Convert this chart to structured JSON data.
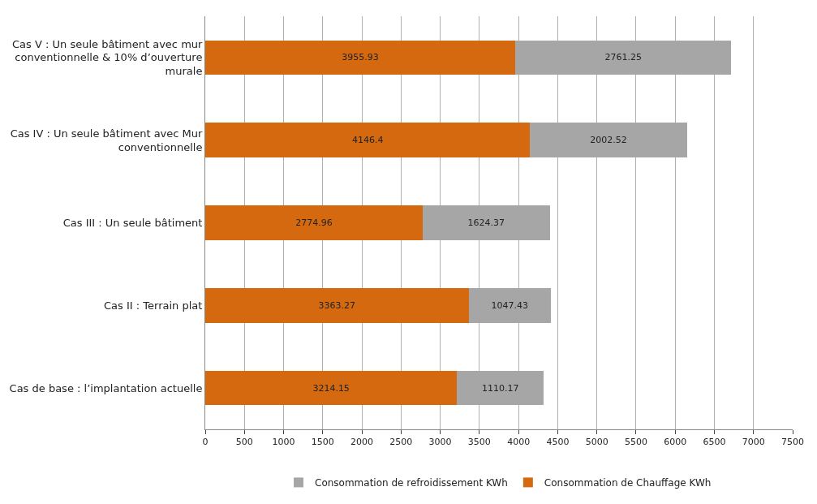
{
  "chart_data": {
    "type": "bar",
    "orientation": "horizontal",
    "stacked": true,
    "categories": [
      "Cas V : Un seule bâtiment avec mur conventionnelle & 10% d’ouverture murale",
      "Cas IV : Un seule bâtiment avec Mur conventionnelle",
      "Cas III : Un seule bâtiment",
      "Cas II : Terrain plat",
      "Cas de base : l’implantation actuelle"
    ],
    "series": [
      {
        "name": "Consommation de Chauffage KWh",
        "color": "#d4690f",
        "values": [
          3955.93,
          4146.4,
          2774.96,
          3363.27,
          3214.15
        ]
      },
      {
        "name": "Consommation de refroidissement KWh",
        "color": "#a6a6a6",
        "values": [
          2761.25,
          2002.52,
          1624.37,
          1047.43,
          1110.17
        ]
      }
    ],
    "xlim": [
      0,
      7500
    ],
    "xticks": [
      0,
      500,
      1000,
      1500,
      2000,
      2500,
      3000,
      3500,
      4000,
      4500,
      5000,
      5500,
      6000,
      6500,
      7000,
      7500
    ],
    "grid": "x",
    "legend": "bottom",
    "data_labels": true
  }
}
